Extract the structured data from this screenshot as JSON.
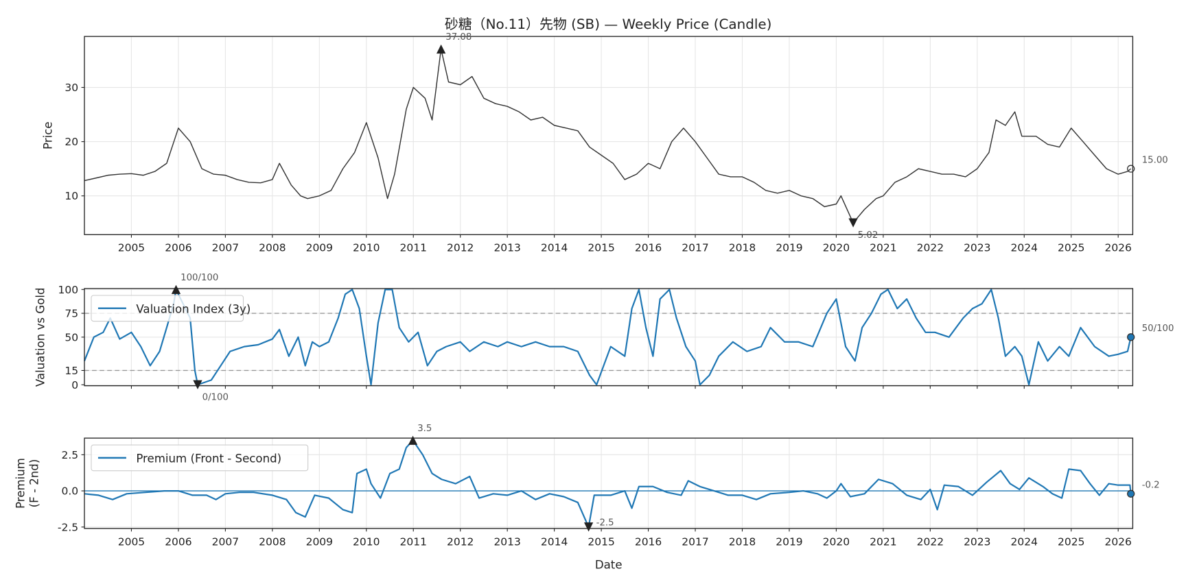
{
  "title": "砂糖（No.11）先物 (SB) — Weekly Price (Candle)",
  "colors": {
    "price": "#333333",
    "series": "#1f77b4",
    "grid": "#e6e6e6",
    "ref": "#999999",
    "marker": "#222222"
  },
  "chart_data": [
    {
      "type": "line",
      "ylabel": "Price",
      "xlim": [
        2004.0,
        2026.31
      ],
      "ylim": [
        2.85,
        39.4
      ],
      "yticks": [
        10,
        20,
        30
      ],
      "xticks": [
        2005,
        2006,
        2007,
        2008,
        2009,
        2010,
        2011,
        2012,
        2013,
        2014,
        2015,
        2016,
        2017,
        2018,
        2019,
        2020,
        2021,
        2022,
        2023,
        2024,
        2025,
        2026
      ],
      "grid": true,
      "x": [
        2004.0,
        2004.25,
        2004.5,
        2004.75,
        2005.0,
        2005.25,
        2005.5,
        2005.75,
        2006.0,
        2006.25,
        2006.5,
        2006.75,
        2007.0,
        2007.25,
        2007.5,
        2007.75,
        2008.0,
        2008.15,
        2008.4,
        2008.6,
        2008.75,
        2009.0,
        2009.25,
        2009.5,
        2009.75,
        2010.0,
        2010.25,
        2010.45,
        2010.6,
        2010.85,
        2011.0,
        2011.25,
        2011.4,
        2011.59,
        2011.75,
        2012.0,
        2012.25,
        2012.5,
        2012.75,
        2013.0,
        2013.25,
        2013.5,
        2013.75,
        2014.0,
        2014.25,
        2014.5,
        2014.75,
        2015.0,
        2015.25,
        2015.5,
        2015.75,
        2016.0,
        2016.25,
        2016.5,
        2016.75,
        2017.0,
        2017.25,
        2017.5,
        2017.75,
        2018.0,
        2018.25,
        2018.5,
        2018.75,
        2019.0,
        2019.25,
        2019.5,
        2019.75,
        2020.0,
        2020.1,
        2020.36,
        2020.6,
        2020.85,
        2021.0,
        2021.25,
        2021.5,
        2021.75,
        2022.0,
        2022.25,
        2022.5,
        2022.75,
        2023.0,
        2023.25,
        2023.4,
        2023.6,
        2023.8,
        2023.95,
        2024.25,
        2024.5,
        2024.75,
        2025.0,
        2025.25,
        2025.5,
        2025.75,
        2026.0,
        2026.2,
        2026.27
      ],
      "values": [
        12.8,
        13.3,
        13.8,
        14.0,
        14.1,
        13.8,
        14.5,
        16,
        22.5,
        20,
        15,
        14,
        13.8,
        13,
        12.5,
        12.4,
        13,
        16,
        12,
        10,
        9.5,
        10,
        11,
        15,
        18,
        23.5,
        17,
        9.5,
        14,
        26,
        30,
        28,
        24,
        37.08,
        31,
        30.5,
        32,
        28,
        27,
        26.5,
        25.5,
        24,
        24.5,
        23,
        22.5,
        22,
        19,
        17.5,
        16,
        13,
        14,
        16,
        15,
        20,
        22.5,
        20,
        17,
        14,
        13.5,
        13.5,
        12.5,
        11,
        10.5,
        11,
        10,
        9.5,
        8,
        8.5,
        10,
        5.02,
        7.5,
        9.5,
        10,
        12.5,
        13.5,
        15,
        14.5,
        14,
        14,
        13.5,
        15,
        18,
        24,
        23,
        25.5,
        21,
        21,
        19.5,
        19,
        22.5,
        20,
        17.5,
        15,
        14,
        14.5,
        15.0
      ],
      "annotations": {
        "max": {
          "x": 2011.59,
          "y": 37.08,
          "label": "37.08"
        },
        "min": {
          "x": 2020.36,
          "y": 5.02,
          "label": "5.02"
        },
        "last": {
          "x": 2026.27,
          "y": 15.0,
          "label": "15.00"
        }
      }
    },
    {
      "type": "line",
      "ylabel": "Valuation vs Gold",
      "legend": "Valuation Index (3y)",
      "legend_placement": "top-left",
      "xlim": [
        2004.0,
        2026.31
      ],
      "ylim": [
        -1,
        101
      ],
      "yticks": [
        0,
        15,
        50,
        75,
        100
      ],
      "ref_lines": [
        15,
        75
      ],
      "grid": true,
      "x": [
        2004.0,
        2004.2,
        2004.4,
        2004.55,
        2004.75,
        2005.0,
        2005.2,
        2005.4,
        2005.6,
        2005.75,
        2005.9,
        2005.95,
        2006.25,
        2006.35,
        2006.41,
        2006.7,
        2006.9,
        2007.1,
        2007.4,
        2007.7,
        2008.0,
        2008.15,
        2008.35,
        2008.55,
        2008.7,
        2008.85,
        2009.0,
        2009.2,
        2009.4,
        2009.55,
        2009.7,
        2009.85,
        2010.0,
        2010.1,
        2010.25,
        2010.4,
        2010.55,
        2010.7,
        2010.9,
        2011.1,
        2011.3,
        2011.5,
        2011.7,
        2012.0,
        2012.2,
        2012.5,
        2012.8,
        2013.0,
        2013.3,
        2013.6,
        2013.9,
        2014.2,
        2014.5,
        2014.75,
        2014.9,
        2015.2,
        2015.5,
        2015.65,
        2015.8,
        2015.95,
        2016.1,
        2016.25,
        2016.45,
        2016.6,
        2016.8,
        2017.0,
        2017.1,
        2017.3,
        2017.5,
        2017.8,
        2018.1,
        2018.4,
        2018.6,
        2018.9,
        2019.2,
        2019.5,
        2019.8,
        2020.0,
        2020.2,
        2020.4,
        2020.55,
        2020.75,
        2020.95,
        2021.1,
        2021.3,
        2021.5,
        2021.7,
        2021.9,
        2022.1,
        2022.4,
        2022.7,
        2022.9,
        2023.1,
        2023.3,
        2023.45,
        2023.6,
        2023.8,
        2023.95,
        2024.1,
        2024.3,
        2024.5,
        2024.75,
        2024.95,
        2025.2,
        2025.5,
        2025.8,
        2026.0,
        2026.2,
        2026.27
      ],
      "values": [
        25,
        50,
        55,
        70,
        48,
        55,
        40,
        20,
        35,
        60,
        85,
        100,
        70,
        15,
        0,
        5,
        20,
        35,
        40,
        42,
        48,
        58,
        30,
        50,
        20,
        45,
        40,
        45,
        70,
        95,
        100,
        80,
        30,
        0,
        65,
        100,
        100,
        60,
        45,
        55,
        20,
        35,
        40,
        45,
        35,
        45,
        40,
        45,
        40,
        45,
        40,
        40,
        35,
        10,
        0,
        40,
        30,
        80,
        100,
        60,
        30,
        90,
        100,
        70,
        40,
        25,
        0,
        10,
        30,
        45,
        35,
        40,
        60,
        45,
        45,
        40,
        75,
        90,
        40,
        25,
        60,
        75,
        95,
        100,
        80,
        90,
        70,
        55,
        55,
        50,
        70,
        80,
        85,
        100,
        70,
        30,
        40,
        30,
        0,
        45,
        25,
        40,
        30,
        60,
        40,
        30,
        32,
        35,
        50
      ],
      "annotations": {
        "max": {
          "x": 2005.95,
          "y": 100,
          "label": "100/100"
        },
        "min": {
          "x": 2006.41,
          "y": 0,
          "label": "0/100"
        },
        "last": {
          "x": 2026.27,
          "y": 50,
          "label": "50/100"
        }
      }
    },
    {
      "type": "line",
      "ylabel": "Premium\n(F - 2nd)",
      "xlabel": "Date",
      "legend": "Premium (Front - Second)",
      "legend_placement": "top-left",
      "xlim": [
        2004.0,
        2026.31
      ],
      "ylim": [
        -2.6,
        3.65
      ],
      "yticks": [
        -2.5,
        0.0,
        2.5
      ],
      "ytick_labels": [
        "-2.5",
        "0.0",
        "2.5"
      ],
      "ref_lines": [
        0
      ],
      "grid": true,
      "x": [
        2004.0,
        2004.3,
        2004.6,
        2004.9,
        2005.3,
        2005.7,
        2006.0,
        2006.3,
        2006.6,
        2006.8,
        2007.0,
        2007.3,
        2007.6,
        2008.0,
        2008.3,
        2008.5,
        2008.7,
        2008.9,
        2009.2,
        2009.5,
        2009.7,
        2009.8,
        2010.0,
        2010.1,
        2010.3,
        2010.5,
        2010.7,
        2010.85,
        2010.99,
        2011.2,
        2011.4,
        2011.6,
        2011.9,
        2012.2,
        2012.4,
        2012.7,
        2013.0,
        2013.3,
        2013.6,
        2013.9,
        2014.2,
        2014.5,
        2014.73,
        2014.85,
        2015.2,
        2015.5,
        2015.65,
        2015.8,
        2016.1,
        2016.4,
        2016.7,
        2016.85,
        2017.1,
        2017.4,
        2017.7,
        2018.0,
        2018.3,
        2018.6,
        2019.0,
        2019.3,
        2019.6,
        2019.8,
        2020.0,
        2020.1,
        2020.3,
        2020.6,
        2020.9,
        2021.2,
        2021.5,
        2021.8,
        2022.0,
        2022.15,
        2022.3,
        2022.6,
        2022.9,
        2023.2,
        2023.5,
        2023.7,
        2023.9,
        2024.1,
        2024.4,
        2024.6,
        2024.8,
        2024.95,
        2025.2,
        2025.4,
        2025.6,
        2025.8,
        2026.0,
        2026.25,
        2026.27
      ],
      "values": [
        -0.2,
        -0.3,
        -0.6,
        -0.2,
        -0.1,
        0,
        0.0,
        -0.3,
        -0.3,
        -0.6,
        -0.2,
        -0.1,
        -0.1,
        -0.3,
        -0.6,
        -1.5,
        -1.8,
        -0.3,
        -0.5,
        -1.3,
        -1.5,
        1.2,
        1.5,
        0.5,
        -0.5,
        1.2,
        1.5,
        3.0,
        3.5,
        2.5,
        1.2,
        0.8,
        0.5,
        1.0,
        -0.5,
        -0.2,
        -0.3,
        0,
        -0.6,
        -0.2,
        -0.4,
        -0.8,
        -2.5,
        -0.3,
        -0.3,
        0,
        -1.2,
        0.3,
        0.3,
        -0.1,
        -0.3,
        0.7,
        0.3,
        0,
        -0.3,
        -0.3,
        -0.6,
        -0.2,
        -0.1,
        0,
        -0.2,
        -0.5,
        0,
        0.5,
        -0.4,
        -0.2,
        0.8,
        0.5,
        -0.3,
        -0.6,
        0.1,
        -1.3,
        0.4,
        0.3,
        -0.3,
        0.6,
        1.4,
        0.5,
        0.1,
        0.9,
        0.3,
        -0.2,
        -0.5,
        1.5,
        1.4,
        0.5,
        -0.3,
        0.5,
        0.4,
        0.4,
        -0.2
      ],
      "annotations": {
        "max": {
          "x": 2010.99,
          "y": 3.5,
          "label": "3.5"
        },
        "min": {
          "x": 2014.73,
          "y": -2.5,
          "label": "-2.5"
        },
        "last": {
          "x": 2026.27,
          "y": -0.2,
          "label": "-0.2"
        }
      }
    }
  ]
}
